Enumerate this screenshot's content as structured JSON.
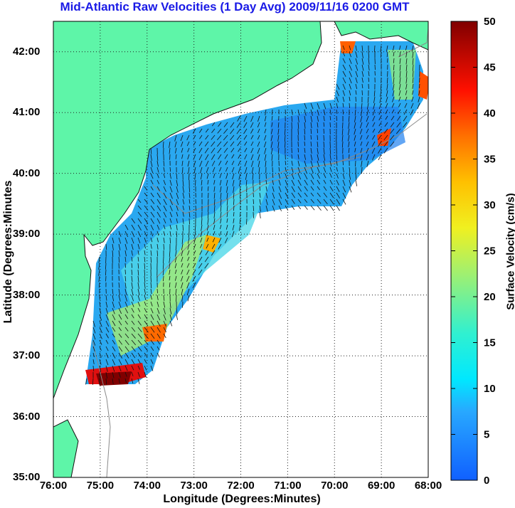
{
  "title": "Mid-Atlantic Raw Velocities (1 Day Avg) 2009/11/16 0200 GMT",
  "xlabel": "Longitude (Degrees:Minutes)",
  "ylabel": "Latitude (Degrees:Minutes",
  "colorbar_label": "Surface Velocity (cm/s)",
  "colors": {
    "land": "#5ef5a8",
    "contour": "#8a8a8a",
    "arrow": "#111111",
    "title": "#1a1ae6"
  },
  "chart_data": {
    "type": "heatmap",
    "map_extent": {
      "lon": [
        -76,
        -68
      ],
      "lat": [
        35,
        42.5
      ]
    },
    "grid": "dotted",
    "x_ticks": [
      "76:00",
      "75:00",
      "74:00",
      "73:00",
      "72:00",
      "71:00",
      "70:00",
      "69:00",
      "68:00"
    ],
    "y_ticks": [
      "35:00",
      "36:00",
      "37:00",
      "38:00",
      "39:00",
      "40:00",
      "41:00",
      "42:00"
    ],
    "colorbar": {
      "min": 0,
      "max": 50,
      "ticks": [
        "0",
        "5",
        "10",
        "15",
        "20",
        "25",
        "30",
        "35",
        "40",
        "45",
        "50"
      ],
      "colormap": "jet"
    }
  }
}
